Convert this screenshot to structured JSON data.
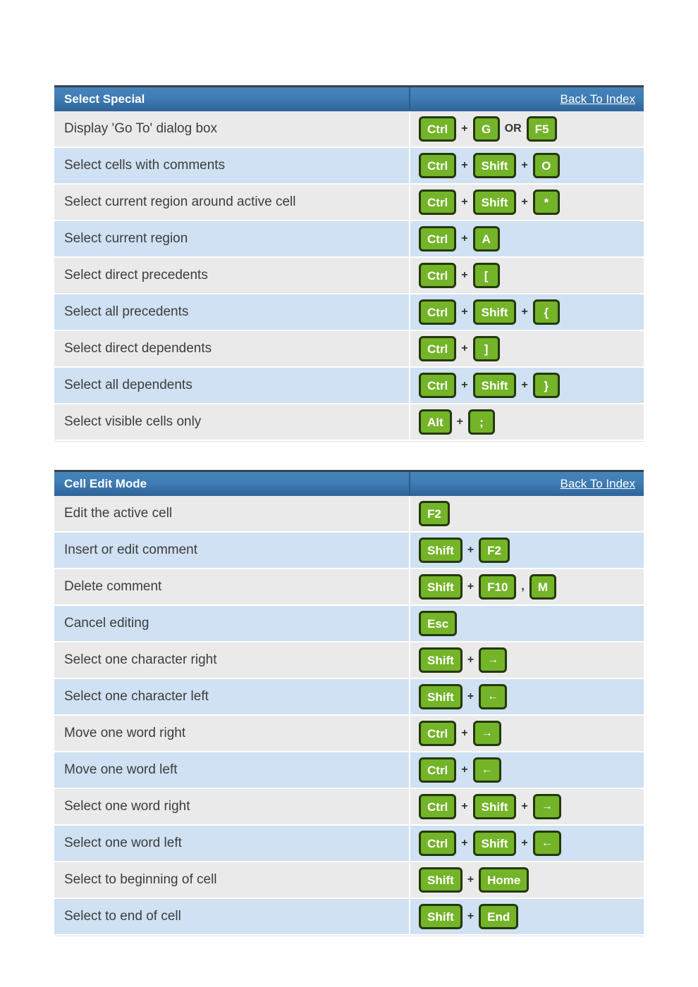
{
  "colors": {
    "header_gradient_top": "#4584bb",
    "header_gradient_bottom": "#2f6499",
    "header_top_edge": "#39424b",
    "row_gray": "#eaeaea",
    "row_blue": "#cfe1f2",
    "keycap_green": "#74b428",
    "keycap_border": "#24380c",
    "description_text": "#3d3d3d",
    "header_text": "#ffffff"
  },
  "tables": [
    {
      "title": "Select Special",
      "back_link": "Back To Index",
      "rows": [
        {
          "desc": "Display 'Go To' dialog box",
          "keys": [
            {
              "t": "key",
              "v": "Ctrl"
            },
            {
              "t": "sep",
              "v": "+"
            },
            {
              "t": "key",
              "v": "G"
            },
            {
              "t": "sep",
              "v": "OR"
            },
            {
              "t": "key",
              "v": "F5"
            }
          ]
        },
        {
          "desc": "Select cells with comments",
          "keys": [
            {
              "t": "key",
              "v": "Ctrl"
            },
            {
              "t": "sep",
              "v": "+"
            },
            {
              "t": "key",
              "v": "Shift"
            },
            {
              "t": "sep",
              "v": "+"
            },
            {
              "t": "key",
              "v": "O"
            }
          ]
        },
        {
          "desc": "Select current region around active cell",
          "keys": [
            {
              "t": "key",
              "v": "Ctrl"
            },
            {
              "t": "sep",
              "v": "+"
            },
            {
              "t": "key",
              "v": "Shift"
            },
            {
              "t": "sep",
              "v": "+"
            },
            {
              "t": "key",
              "v": "*"
            }
          ]
        },
        {
          "desc": "Select current region",
          "keys": [
            {
              "t": "key",
              "v": "Ctrl"
            },
            {
              "t": "sep",
              "v": "+"
            },
            {
              "t": "key",
              "v": "A"
            }
          ]
        },
        {
          "desc": "Select direct precedents",
          "keys": [
            {
              "t": "key",
              "v": "Ctrl"
            },
            {
              "t": "sep",
              "v": "+"
            },
            {
              "t": "key",
              "v": "["
            }
          ]
        },
        {
          "desc": "Select all precedents",
          "keys": [
            {
              "t": "key",
              "v": "Ctrl"
            },
            {
              "t": "sep",
              "v": "+"
            },
            {
              "t": "key",
              "v": "Shift"
            },
            {
              "t": "sep",
              "v": "+"
            },
            {
              "t": "key",
              "v": "{"
            }
          ]
        },
        {
          "desc": "Select direct dependents",
          "keys": [
            {
              "t": "key",
              "v": "Ctrl"
            },
            {
              "t": "sep",
              "v": "+"
            },
            {
              "t": "key",
              "v": "]"
            }
          ]
        },
        {
          "desc": "Select all dependents",
          "keys": [
            {
              "t": "key",
              "v": "Ctrl"
            },
            {
              "t": "sep",
              "v": "+"
            },
            {
              "t": "key",
              "v": "Shift"
            },
            {
              "t": "sep",
              "v": "+"
            },
            {
              "t": "key",
              "v": "}"
            }
          ]
        },
        {
          "desc": "Select visible cells only",
          "keys": [
            {
              "t": "key",
              "v": "Alt"
            },
            {
              "t": "sep",
              "v": "+"
            },
            {
              "t": "key",
              "v": ";"
            }
          ]
        }
      ]
    },
    {
      "title": "Cell Edit Mode",
      "back_link": "Back To Index",
      "rows": [
        {
          "desc": "Edit the active cell",
          "keys": [
            {
              "t": "key",
              "v": "F2"
            }
          ]
        },
        {
          "desc": "Insert or edit comment",
          "keys": [
            {
              "t": "key",
              "v": "Shift"
            },
            {
              "t": "sep",
              "v": "+"
            },
            {
              "t": "key",
              "v": "F2"
            }
          ]
        },
        {
          "desc": "Delete comment",
          "keys": [
            {
              "t": "key",
              "v": "Shift"
            },
            {
              "t": "sep",
              "v": "+"
            },
            {
              "t": "key",
              "v": "F10"
            },
            {
              "t": "sep",
              "v": ","
            },
            {
              "t": "key",
              "v": "M"
            }
          ]
        },
        {
          "desc": "Cancel editing",
          "keys": [
            {
              "t": "key",
              "v": "Esc"
            }
          ]
        },
        {
          "desc": "Select one character right",
          "keys": [
            {
              "t": "key",
              "v": "Shift"
            },
            {
              "t": "sep",
              "v": "+"
            },
            {
              "t": "key",
              "v": "→"
            }
          ]
        },
        {
          "desc": "Select one character left",
          "keys": [
            {
              "t": "key",
              "v": "Shift"
            },
            {
              "t": "sep",
              "v": "+"
            },
            {
              "t": "key",
              "v": "←"
            }
          ]
        },
        {
          "desc": "Move one word right",
          "keys": [
            {
              "t": "key",
              "v": "Ctrl"
            },
            {
              "t": "sep",
              "v": "+"
            },
            {
              "t": "key",
              "v": "→"
            }
          ]
        },
        {
          "desc": "Move one word left",
          "keys": [
            {
              "t": "key",
              "v": "Ctrl"
            },
            {
              "t": "sep",
              "v": "+"
            },
            {
              "t": "key",
              "v": "←"
            }
          ]
        },
        {
          "desc": "Select one word right",
          "keys": [
            {
              "t": "key",
              "v": "Ctrl"
            },
            {
              "t": "sep",
              "v": "+"
            },
            {
              "t": "key",
              "v": "Shift"
            },
            {
              "t": "sep",
              "v": "+"
            },
            {
              "t": "key",
              "v": "→"
            }
          ]
        },
        {
          "desc": "Select one word left",
          "keys": [
            {
              "t": "key",
              "v": "Ctrl"
            },
            {
              "t": "sep",
              "v": "+"
            },
            {
              "t": "key",
              "v": "Shift"
            },
            {
              "t": "sep",
              "v": "+"
            },
            {
              "t": "key",
              "v": "←"
            }
          ]
        },
        {
          "desc": "Select to beginning of cell",
          "keys": [
            {
              "t": "key",
              "v": "Shift"
            },
            {
              "t": "sep",
              "v": "+"
            },
            {
              "t": "key",
              "v": "Home"
            }
          ]
        },
        {
          "desc": "Select to end of cell",
          "keys": [
            {
              "t": "key",
              "v": "Shift"
            },
            {
              "t": "sep",
              "v": "+"
            },
            {
              "t": "key",
              "v": "End"
            }
          ]
        }
      ]
    }
  ]
}
